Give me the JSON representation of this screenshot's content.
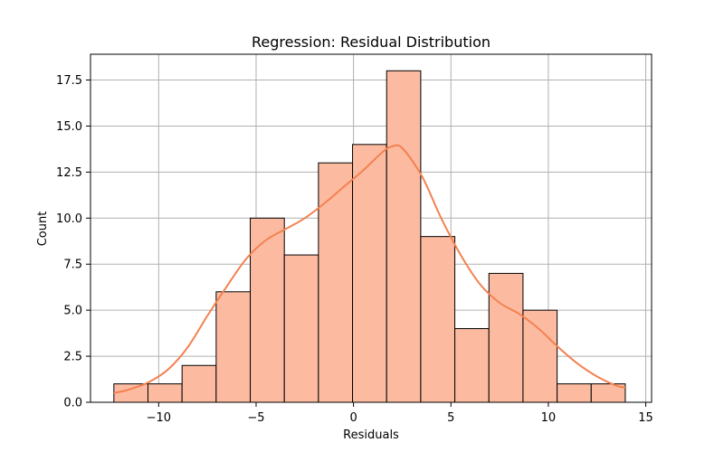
{
  "chart_data": {
    "type": "bar",
    "title": "Regression: Residual Distribution",
    "xlabel": "Residuals",
    "ylabel": "Count",
    "xlim": [
      -13.5,
      15.3
    ],
    "ylim": [
      0,
      18.9
    ],
    "xticks": [
      -10,
      -5,
      0,
      5,
      10,
      15
    ],
    "xtick_labels": [
      "−10",
      "−5",
      "0",
      "5",
      "10",
      "15"
    ],
    "yticks": [
      0,
      2.5,
      5,
      7.5,
      10,
      12.5,
      15,
      17.5
    ],
    "ytick_labels": [
      "0.0",
      "2.5",
      "5.0",
      "7.5",
      "10.0",
      "12.5",
      "15.0",
      "17.5"
    ],
    "grid": true,
    "bin_edges": [
      -12.3,
      -10.55,
      -8.8,
      -7.05,
      -5.3,
      -3.55,
      -1.8,
      -0.05,
      1.7,
      3.45,
      5.2,
      6.95,
      8.7,
      10.45,
      12.2,
      13.95
    ],
    "counts": [
      1,
      1,
      2,
      6,
      10,
      8,
      13,
      14,
      18,
      9,
      4,
      7,
      5,
      1,
      1
    ],
    "kde": {
      "x": [
        -12.3,
        -11.5,
        -10.5,
        -9.5,
        -8.5,
        -7.5,
        -6.5,
        -5.5,
        -4.5,
        -3.5,
        -2.5,
        -1.5,
        -0.5,
        0.5,
        1.5,
        2.0,
        2.5,
        3.5,
        4.5,
        5.5,
        6.5,
        7.5,
        8.5,
        9.5,
        10.5,
        11.5,
        12.5,
        13.5,
        13.95
      ],
      "y": [
        0.5,
        0.7,
        1.1,
        1.8,
        3.0,
        4.7,
        6.3,
        7.8,
        8.8,
        9.4,
        10.0,
        10.8,
        11.7,
        12.6,
        13.6,
        13.9,
        13.8,
        12.3,
        10.0,
        8.0,
        6.4,
        5.4,
        4.8,
        4.0,
        3.0,
        2.1,
        1.4,
        0.9,
        0.8
      ]
    },
    "colors": {
      "bar_fill": "#fcbba1",
      "bar_edge": "#000000",
      "kde_line": "#f4814f",
      "grid": "#b0b0b0"
    }
  }
}
